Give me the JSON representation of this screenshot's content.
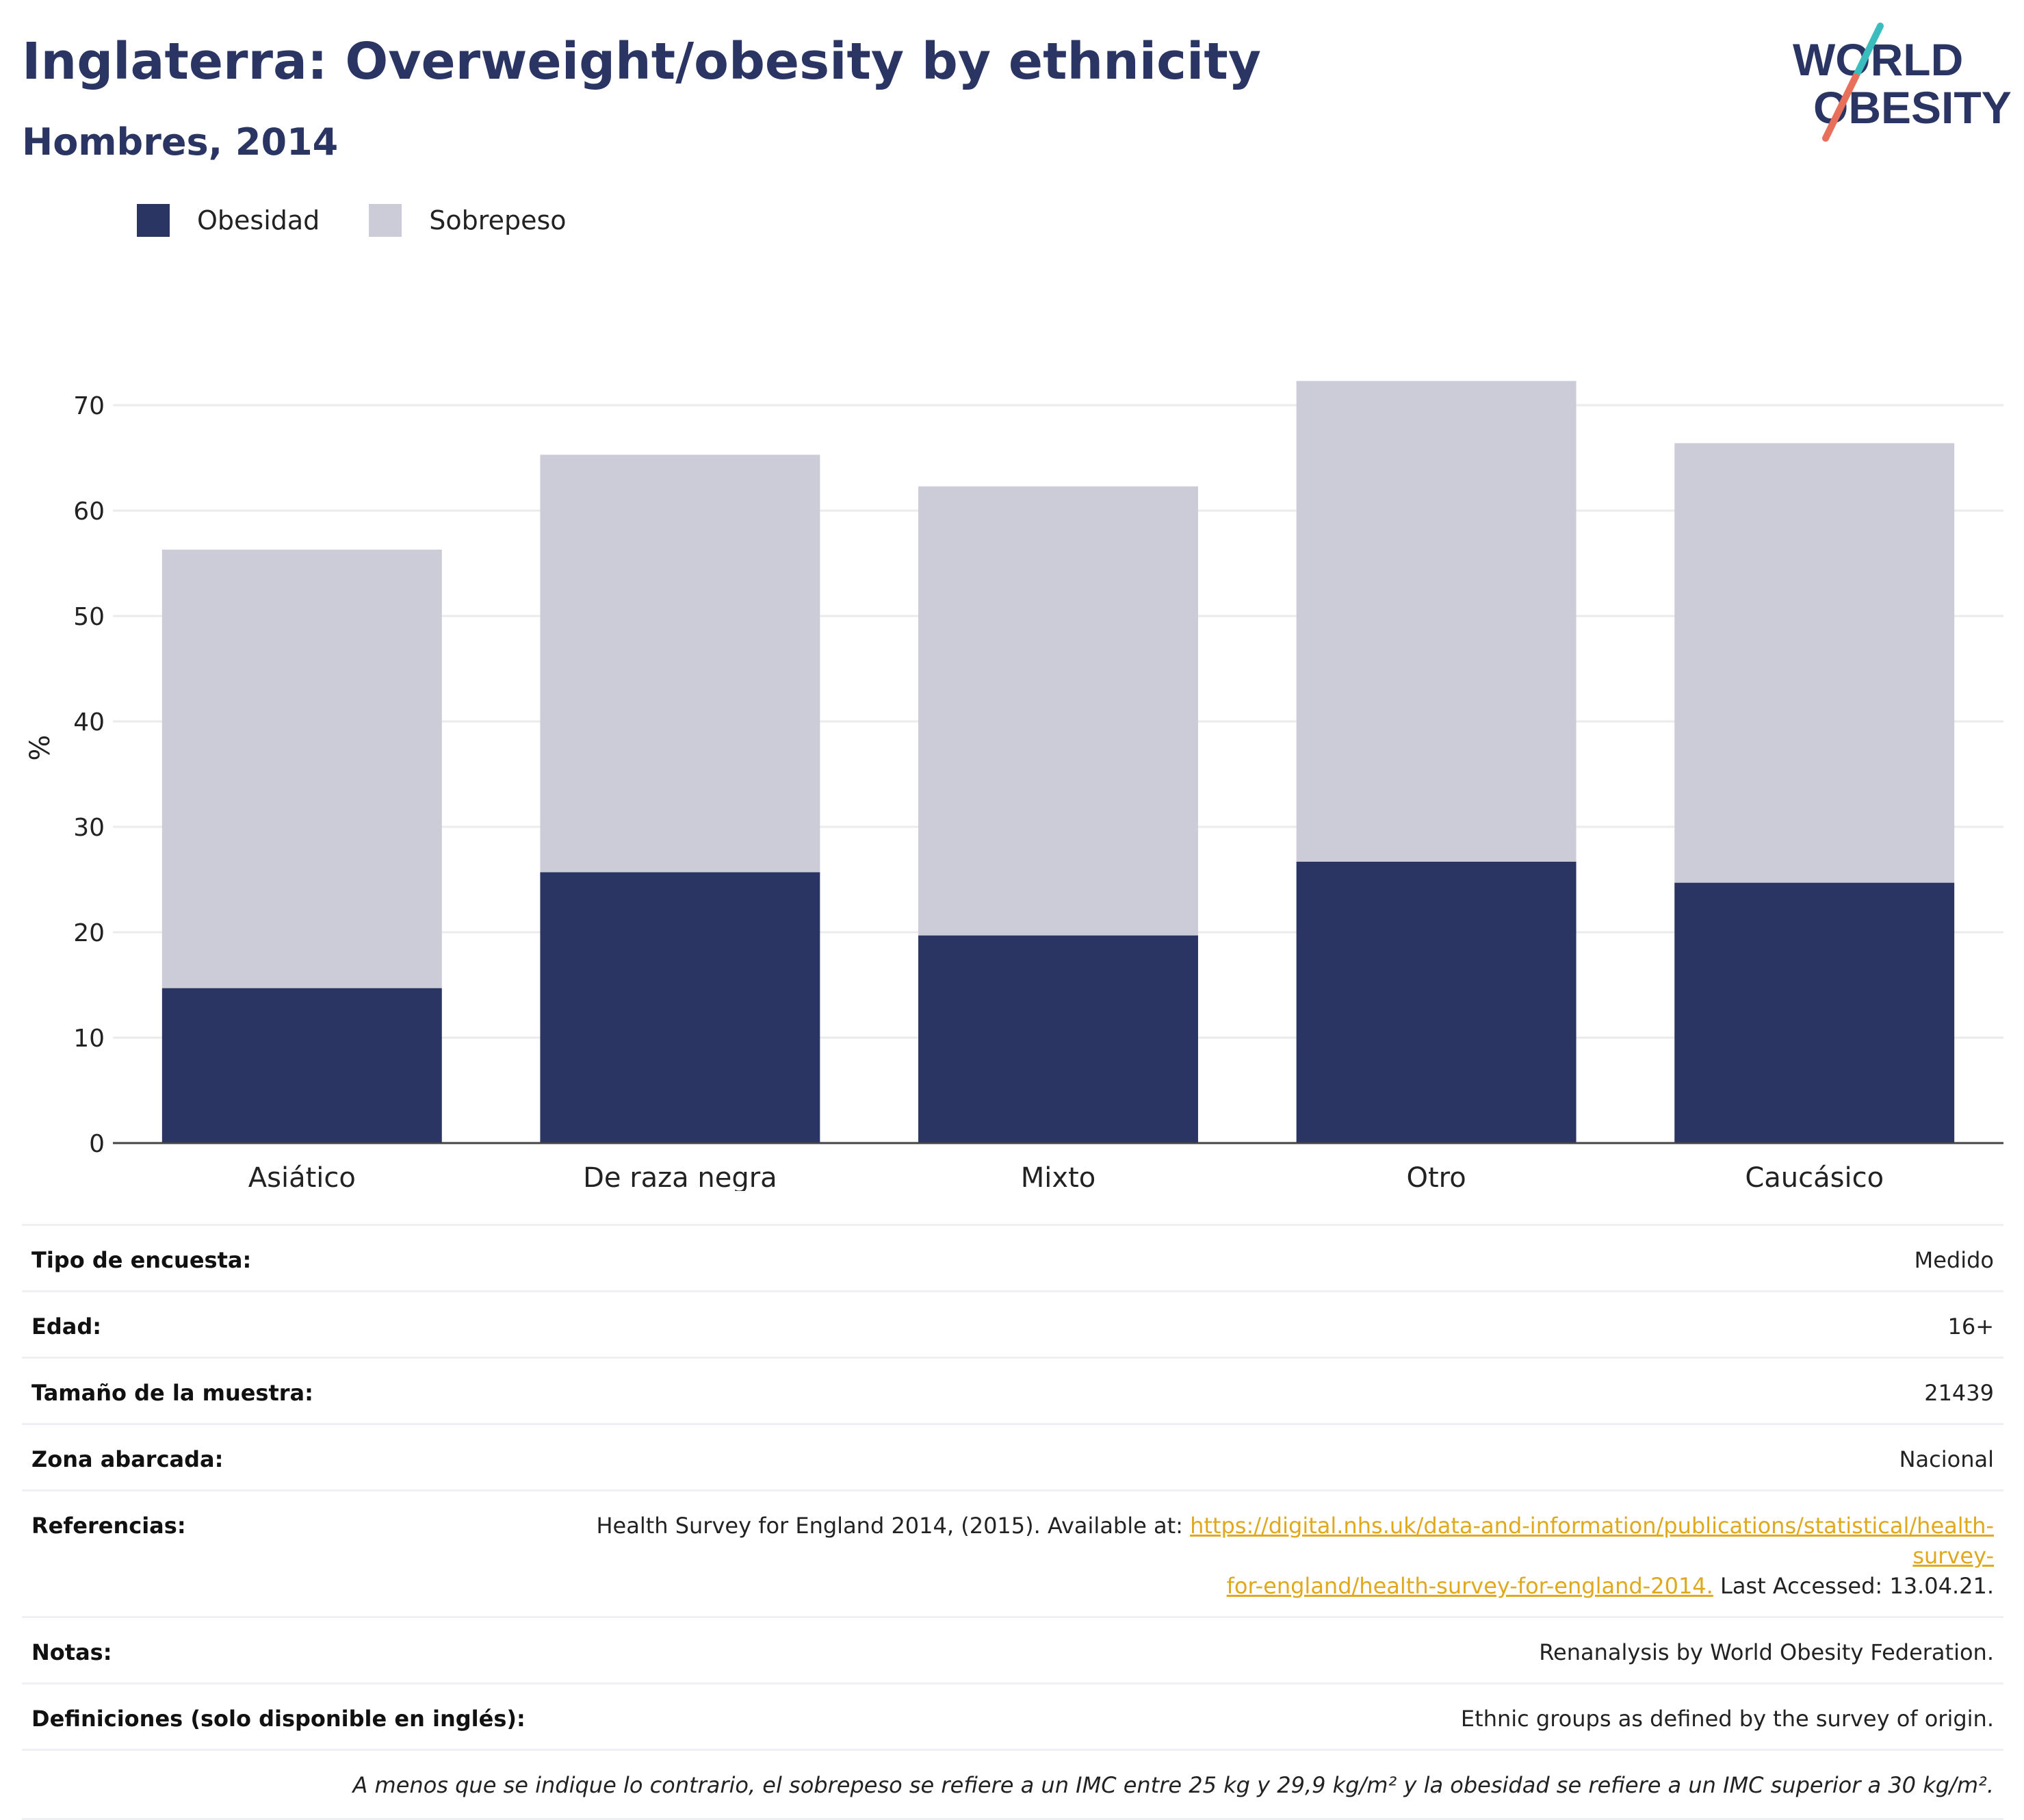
{
  "header": {
    "title": "Inglaterra: Overweight/obesity by ethnicity",
    "subtitle": "Hombres, 2014"
  },
  "logo": {
    "line1": "WORLD",
    "line2": "OBESITY"
  },
  "colors": {
    "obesity": "#2a3563",
    "overweight": "#cbccd8",
    "link": "#e0a81c",
    "axis": "#444444",
    "grid": "#ebebeb"
  },
  "chart_data": {
    "type": "bar",
    "stacked": true,
    "categories": [
      "Asiático",
      "De raza negra",
      "Mixto",
      "Otro",
      "Caucásico"
    ],
    "series": [
      {
        "name": "Obesidad",
        "values": [
          14.7,
          25.7,
          19.7,
          26.7,
          24.7
        ]
      },
      {
        "name": "Sobrepeso",
        "values": [
          41.6,
          39.6,
          42.6,
          45.6,
          41.7
        ]
      }
    ],
    "totals": [
      56.3,
      65.3,
      62.3,
      72.3,
      66.4
    ],
    "ylabel": "%",
    "xlabel": "",
    "ylim": [
      0,
      75
    ],
    "yticks": [
      0,
      10,
      20,
      30,
      40,
      50,
      60,
      70
    ],
    "grid": true,
    "legend_position": "top-left"
  },
  "info": {
    "rows": [
      {
        "label": "Tipo de encuesta:",
        "value": "Medido"
      },
      {
        "label": "Edad:",
        "value": "16+"
      },
      {
        "label": "Tamaño de la muestra:",
        "value": "21439"
      },
      {
        "label": "Zona abarcada:",
        "value": "Nacional"
      }
    ],
    "references": {
      "label": "Referencias:",
      "prefix": "Health Survey for England 2014, (2015). Available at: ",
      "link_line1": "https://digital.nhs.uk/data-and-information/publications/statistical/health-survey-",
      "link_line2": "for-england/health-survey-for-england-2014.",
      "suffix": " Last Accessed: 13.04.21."
    },
    "rows_after": [
      {
        "label": "Notas:",
        "value": "Renanalysis by World Obesity Federation."
      },
      {
        "label": "Definiciones (solo disponible en inglés):",
        "value": "Ethnic groups as defined by the survey of origin."
      }
    ],
    "footnote": "A menos que se indique lo contrario, el sobrepeso se refiere a un IMC entre 25 kg y 29,9 kg/m² y la obesidad se refiere a un IMC superior a 30 kg/m²."
  }
}
